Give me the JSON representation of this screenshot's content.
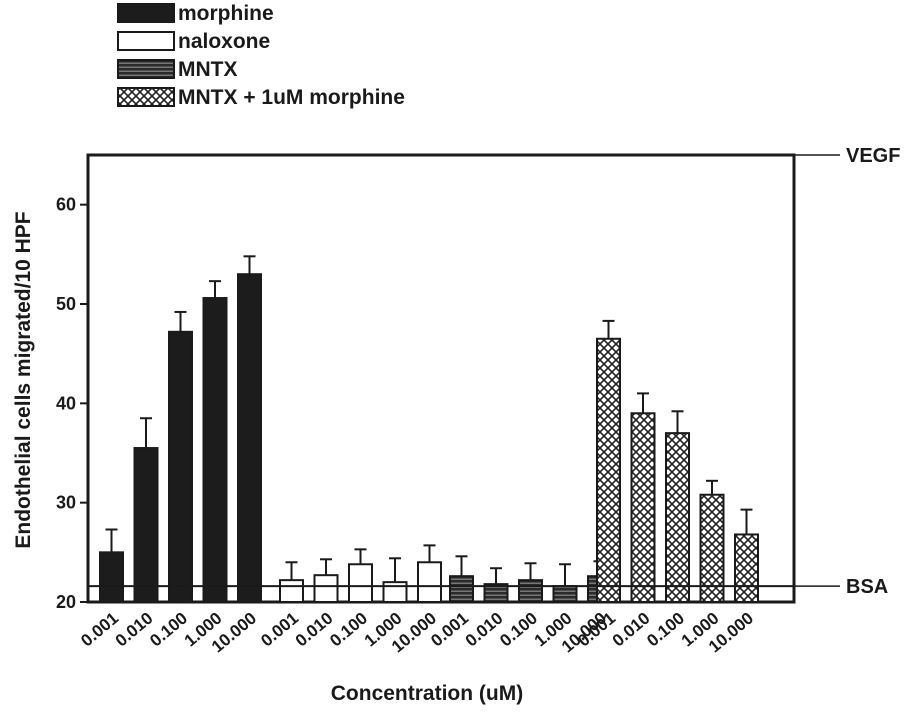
{
  "chart_data": {
    "type": "bar",
    "title": "",
    "xlabel": "Concentration (uM)",
    "ylabel": "Endothelial cells migrated/10 HPF",
    "ylim": [
      20,
      65
    ],
    "yticks": [
      20,
      30,
      40,
      50,
      60
    ],
    "grid": false,
    "legend_position": "top-left",
    "categories": [
      "0.001",
      "0.010",
      "0.100",
      "1.000",
      "10.000"
    ],
    "series": [
      {
        "name": "morphine",
        "fill": "solid-dark",
        "values": [
          25,
          35.5,
          47.2,
          50.6,
          53
        ],
        "errors": [
          2.3,
          3.0,
          2.0,
          1.7,
          1.8
        ]
      },
      {
        "name": "naloxone",
        "fill": "white",
        "values": [
          22.2,
          22.7,
          23.8,
          22,
          24
        ],
        "errors": [
          1.8,
          1.6,
          1.5,
          2.4,
          1.7
        ]
      },
      {
        "name": "MNTX",
        "fill": "dark-striped",
        "values": [
          22.6,
          21.8,
          22.2,
          21.6,
          22.6
        ],
        "errors": [
          2.0,
          1.6,
          1.7,
          2.2,
          1.5
        ]
      },
      {
        "name": "MNTX + 1uM morphine",
        "fill": "crosshatch",
        "values": [
          46.5,
          39,
          37,
          30.8,
          26.8
        ],
        "errors": [
          1.8,
          2.0,
          2.2,
          1.4,
          2.5
        ]
      }
    ],
    "reference_lines": [
      {
        "label": "VEGF",
        "value": 65
      },
      {
        "label": "BSA",
        "value": 21.6
      }
    ]
  },
  "colors": {
    "dark": "#1c1c1c",
    "white": "#ffffff",
    "axis": "#1a1a1a"
  }
}
